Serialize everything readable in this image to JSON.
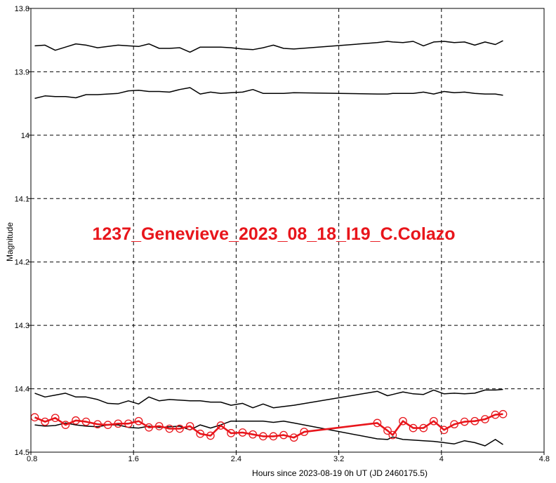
{
  "chart_data": {
    "type": "line",
    "title": "1237_Genevieve_2023_08_18_I19_C.Colazo",
    "xlabel": "Hours since 2023-08-19 0h UT (JD 2460175.5)",
    "ylabel": "Magnitude",
    "xlim": [
      0.8,
      4.8
    ],
    "ylim": [
      13.8,
      14.5
    ],
    "y_inverted": true,
    "grid": true,
    "xticks": [
      "0.8",
      "1.6",
      "2.4",
      "3.2",
      "4",
      "4.8"
    ],
    "yticks": [
      "13.8",
      "13.9",
      "14",
      "14.1",
      "14.2",
      "14.3",
      "14.4",
      "14.5"
    ],
    "colors": {
      "target": "#e8151b",
      "comparison": "#000000",
      "grid": "#000000",
      "title": "#e8151b"
    },
    "series": [
      {
        "role": "comparison",
        "x": [
          0.83,
          0.91,
          0.99,
          1.07,
          1.15,
          1.23,
          1.32,
          1.4,
          1.48,
          1.56,
          1.64,
          1.72,
          1.8,
          1.88,
          1.96,
          2.04,
          2.12,
          2.2,
          2.28,
          2.36,
          2.45,
          2.53,
          2.61,
          2.69,
          2.77,
          2.85,
          3.5,
          3.58,
          3.62,
          3.7,
          3.78,
          3.86,
          3.94,
          4.02,
          4.1,
          4.18,
          4.26,
          4.34,
          4.42,
          4.48
        ],
        "y": [
          13.859,
          13.858,
          13.866,
          13.861,
          13.856,
          13.858,
          13.862,
          13.86,
          13.858,
          13.859,
          13.86,
          13.856,
          13.863,
          13.863,
          13.862,
          13.869,
          13.861,
          13.861,
          13.861,
          13.862,
          13.864,
          13.865,
          13.862,
          13.858,
          13.863,
          13.864,
          13.854,
          13.852,
          13.853,
          13.854,
          13.852,
          13.859,
          13.853,
          13.852,
          13.854,
          13.853,
          13.858,
          13.853,
          13.857,
          13.851
        ]
      },
      {
        "role": "comparison",
        "x": [
          0.83,
          0.91,
          0.99,
          1.07,
          1.15,
          1.23,
          1.32,
          1.4,
          1.48,
          1.56,
          1.64,
          1.72,
          1.8,
          1.88,
          1.96,
          2.04,
          2.12,
          2.2,
          2.28,
          2.36,
          2.45,
          2.53,
          2.61,
          2.69,
          2.77,
          2.85,
          3.5,
          3.58,
          3.62,
          3.7,
          3.78,
          3.86,
          3.94,
          4.02,
          4.1,
          4.18,
          4.26,
          4.34,
          4.42,
          4.48
        ],
        "y": [
          13.942,
          13.938,
          13.939,
          13.939,
          13.941,
          13.936,
          13.936,
          13.935,
          13.934,
          13.93,
          13.929,
          13.931,
          13.931,
          13.932,
          13.928,
          13.925,
          13.935,
          13.932,
          13.934,
          13.933,
          13.932,
          13.928,
          13.934,
          13.934,
          13.934,
          13.933,
          13.935,
          13.935,
          13.934,
          13.934,
          13.934,
          13.932,
          13.935,
          13.931,
          13.933,
          13.932,
          13.934,
          13.935,
          13.935,
          13.937
        ]
      },
      {
        "role": "comparison",
        "x": [
          0.83,
          0.91,
          0.99,
          1.07,
          1.15,
          1.23,
          1.32,
          1.4,
          1.48,
          1.56,
          1.64,
          1.72,
          1.8,
          1.88,
          1.96,
          2.04,
          2.12,
          2.2,
          2.28,
          2.36,
          2.45,
          2.53,
          2.61,
          2.69,
          2.77,
          2.85,
          3.5,
          3.58,
          3.62,
          3.7,
          3.78,
          3.86,
          3.94,
          4.02,
          4.1,
          4.18,
          4.26,
          4.34,
          4.42,
          4.48
        ],
        "y": [
          14.407,
          14.413,
          14.41,
          14.407,
          14.413,
          14.413,
          14.417,
          14.423,
          14.424,
          14.419,
          14.424,
          14.413,
          14.419,
          14.417,
          14.418,
          14.419,
          14.419,
          14.421,
          14.421,
          14.426,
          14.423,
          14.43,
          14.424,
          14.43,
          14.428,
          14.426,
          14.404,
          14.411,
          14.409,
          14.405,
          14.408,
          14.409,
          14.402,
          14.408,
          14.407,
          14.408,
          14.407,
          14.402,
          14.402,
          14.401
        ]
      },
      {
        "role": "comparison",
        "x": [
          0.83,
          0.91,
          0.99,
          1.07,
          1.15,
          1.23,
          1.32,
          1.4,
          1.48,
          1.56,
          1.64,
          1.72,
          1.8,
          1.88,
          1.96,
          2.04,
          2.12,
          2.2,
          2.28,
          2.36,
          2.45,
          2.53,
          2.61,
          2.69,
          2.77,
          2.85,
          3.5,
          3.58,
          3.62,
          3.7,
          3.78,
          3.86,
          3.94,
          4.02,
          4.1,
          4.18,
          4.26,
          4.34,
          4.42,
          4.48
        ],
        "y": [
          14.457,
          14.459,
          14.458,
          14.454,
          14.457,
          14.459,
          14.46,
          14.457,
          14.457,
          14.461,
          14.462,
          14.459,
          14.461,
          14.46,
          14.459,
          14.465,
          14.457,
          14.462,
          14.457,
          14.451,
          14.451,
          14.451,
          14.451,
          14.453,
          14.451,
          14.454,
          14.479,
          14.48,
          14.476,
          14.48,
          14.481,
          14.482,
          14.483,
          14.485,
          14.487,
          14.482,
          14.485,
          14.49,
          14.48,
          14.488
        ]
      },
      {
        "role": "target",
        "x": [
          0.83,
          0.91,
          0.99,
          1.07,
          1.15,
          1.23,
          1.32,
          1.4,
          1.48,
          1.56,
          1.64,
          1.72,
          1.8,
          1.88,
          1.96,
          2.04,
          2.12,
          2.2,
          2.28,
          2.36,
          2.45,
          2.53,
          2.61,
          2.69,
          2.77,
          2.85,
          2.93,
          3.5,
          3.58,
          3.62,
          3.7,
          3.78,
          3.86,
          3.94,
          4.02,
          4.1,
          4.18,
          4.26,
          4.34,
          4.42,
          4.48
        ],
        "y": [
          14.445,
          14.452,
          14.446,
          14.457,
          14.45,
          14.452,
          14.456,
          14.457,
          14.455,
          14.455,
          14.451,
          14.461,
          14.459,
          14.463,
          14.463,
          14.459,
          14.471,
          14.474,
          14.458,
          14.47,
          14.469,
          14.472,
          14.475,
          14.475,
          14.473,
          14.477,
          14.468,
          14.454,
          14.466,
          14.473,
          14.451,
          14.462,
          14.462,
          14.451,
          14.465,
          14.456,
          14.452,
          14.451,
          14.448,
          14.441,
          14.44
        ]
      }
    ]
  }
}
